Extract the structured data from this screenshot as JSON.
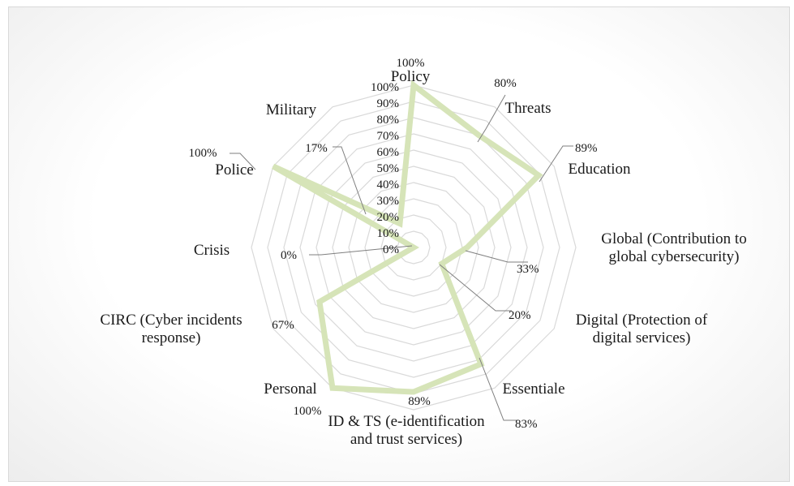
{
  "chart_data": {
    "type": "radar",
    "categories": [
      "Policy",
      "Threats",
      "Education",
      "Global (Contribution to global cybersecurity)",
      "Digital (Protection of digital services)",
      "Essentiale",
      "ID & TS (e-identification and trust services)",
      "Personal",
      "CIRC (Cyber incidents response)",
      "Crisis",
      "Police",
      "Military"
    ],
    "category_lines": [
      [
        "Policy"
      ],
      [
        "Threats"
      ],
      [
        "Education"
      ],
      [
        "Global (Contribution to",
        "global cybersecurity)"
      ],
      [
        "Digital (Protection of",
        "digital services)"
      ],
      [
        "Essentiale"
      ],
      [
        "ID & TS (e-identification",
        "and trust services)"
      ],
      [
        "Personal"
      ],
      [
        "CIRC (Cyber incidents",
        "response)"
      ],
      [
        "Crisis"
      ],
      [
        "Police"
      ],
      [
        "Military"
      ]
    ],
    "values": [
      100,
      80,
      89,
      33,
      20,
      83,
      89,
      100,
      67,
      0,
      100,
      17
    ],
    "data_labels": [
      "100%",
      "80%",
      "89%",
      "33%",
      "20%",
      "83%",
      "89%",
      "100%",
      "67%",
      "0%",
      "100%",
      "17%"
    ],
    "radial_ticks": [
      "0%",
      "10%",
      "20%",
      "30%",
      "40%",
      "50%",
      "60%",
      "70%",
      "80%",
      "90%",
      "100%"
    ],
    "rlim": [
      0,
      100
    ],
    "grid": true,
    "legend": "none",
    "series_color": "#d6e4b8",
    "grid_color": "#d9d9d9"
  }
}
